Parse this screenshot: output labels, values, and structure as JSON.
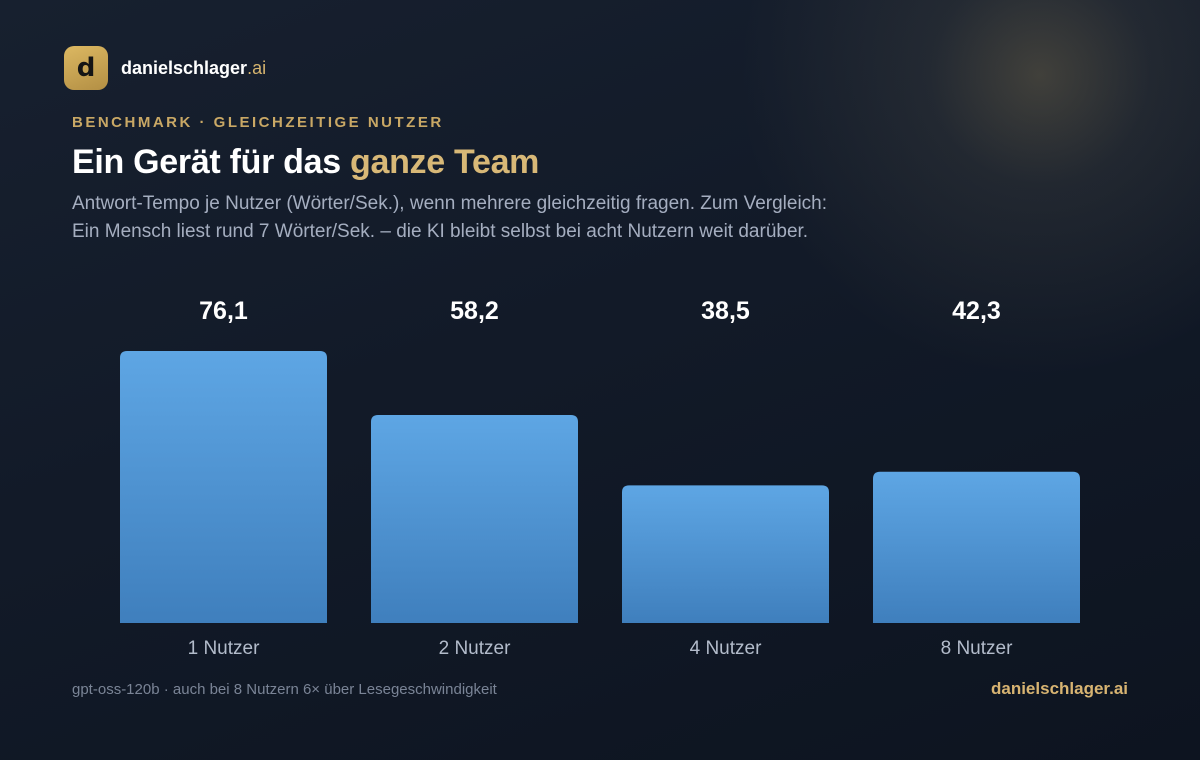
{
  "brand": {
    "logo_letter": "d",
    "name": "danielschlager",
    "tld": ".ai"
  },
  "header": {
    "eyebrow": "BENCHMARK · GLEICHZEITIGE NUTZER",
    "title_main": "Ein Gerät für das ",
    "title_accent": "ganze Team",
    "subtitle": "Antwort-Tempo je Nutzer (Wörter/Sek.), wenn mehrere gleichzeitig fragen. Zum Vergleich: Ein Mensch liest rund 7 Wörter/Sek. – die KI bleibt selbst bei acht Nutzern weit darüber."
  },
  "chart_data": {
    "type": "bar",
    "categories": [
      "1 Nutzer",
      "2 Nutzer",
      "4 Nutzer",
      "8 Nutzer"
    ],
    "values": [
      76.1,
      58.2,
      38.5,
      42.3
    ],
    "value_labels": [
      "76,1",
      "58,2",
      "38,5",
      "42,3"
    ],
    "title": "Ein Gerät für das ganze Team",
    "xlabel": "",
    "ylabel": "",
    "ylim": [
      0,
      76.1
    ],
    "grid": false,
    "legend": "none",
    "bar_color_top": "#5ea6e4",
    "bar_color_bottom": "#3f7fbd"
  },
  "footer": {
    "note": "gpt-oss-120b · auch bei 8 Nutzern 6× über Lesegeschwindigkeit",
    "brand": "danielschlager.ai"
  },
  "colors": {
    "accent_gold": "#d8b877",
    "background": "#121a28"
  }
}
